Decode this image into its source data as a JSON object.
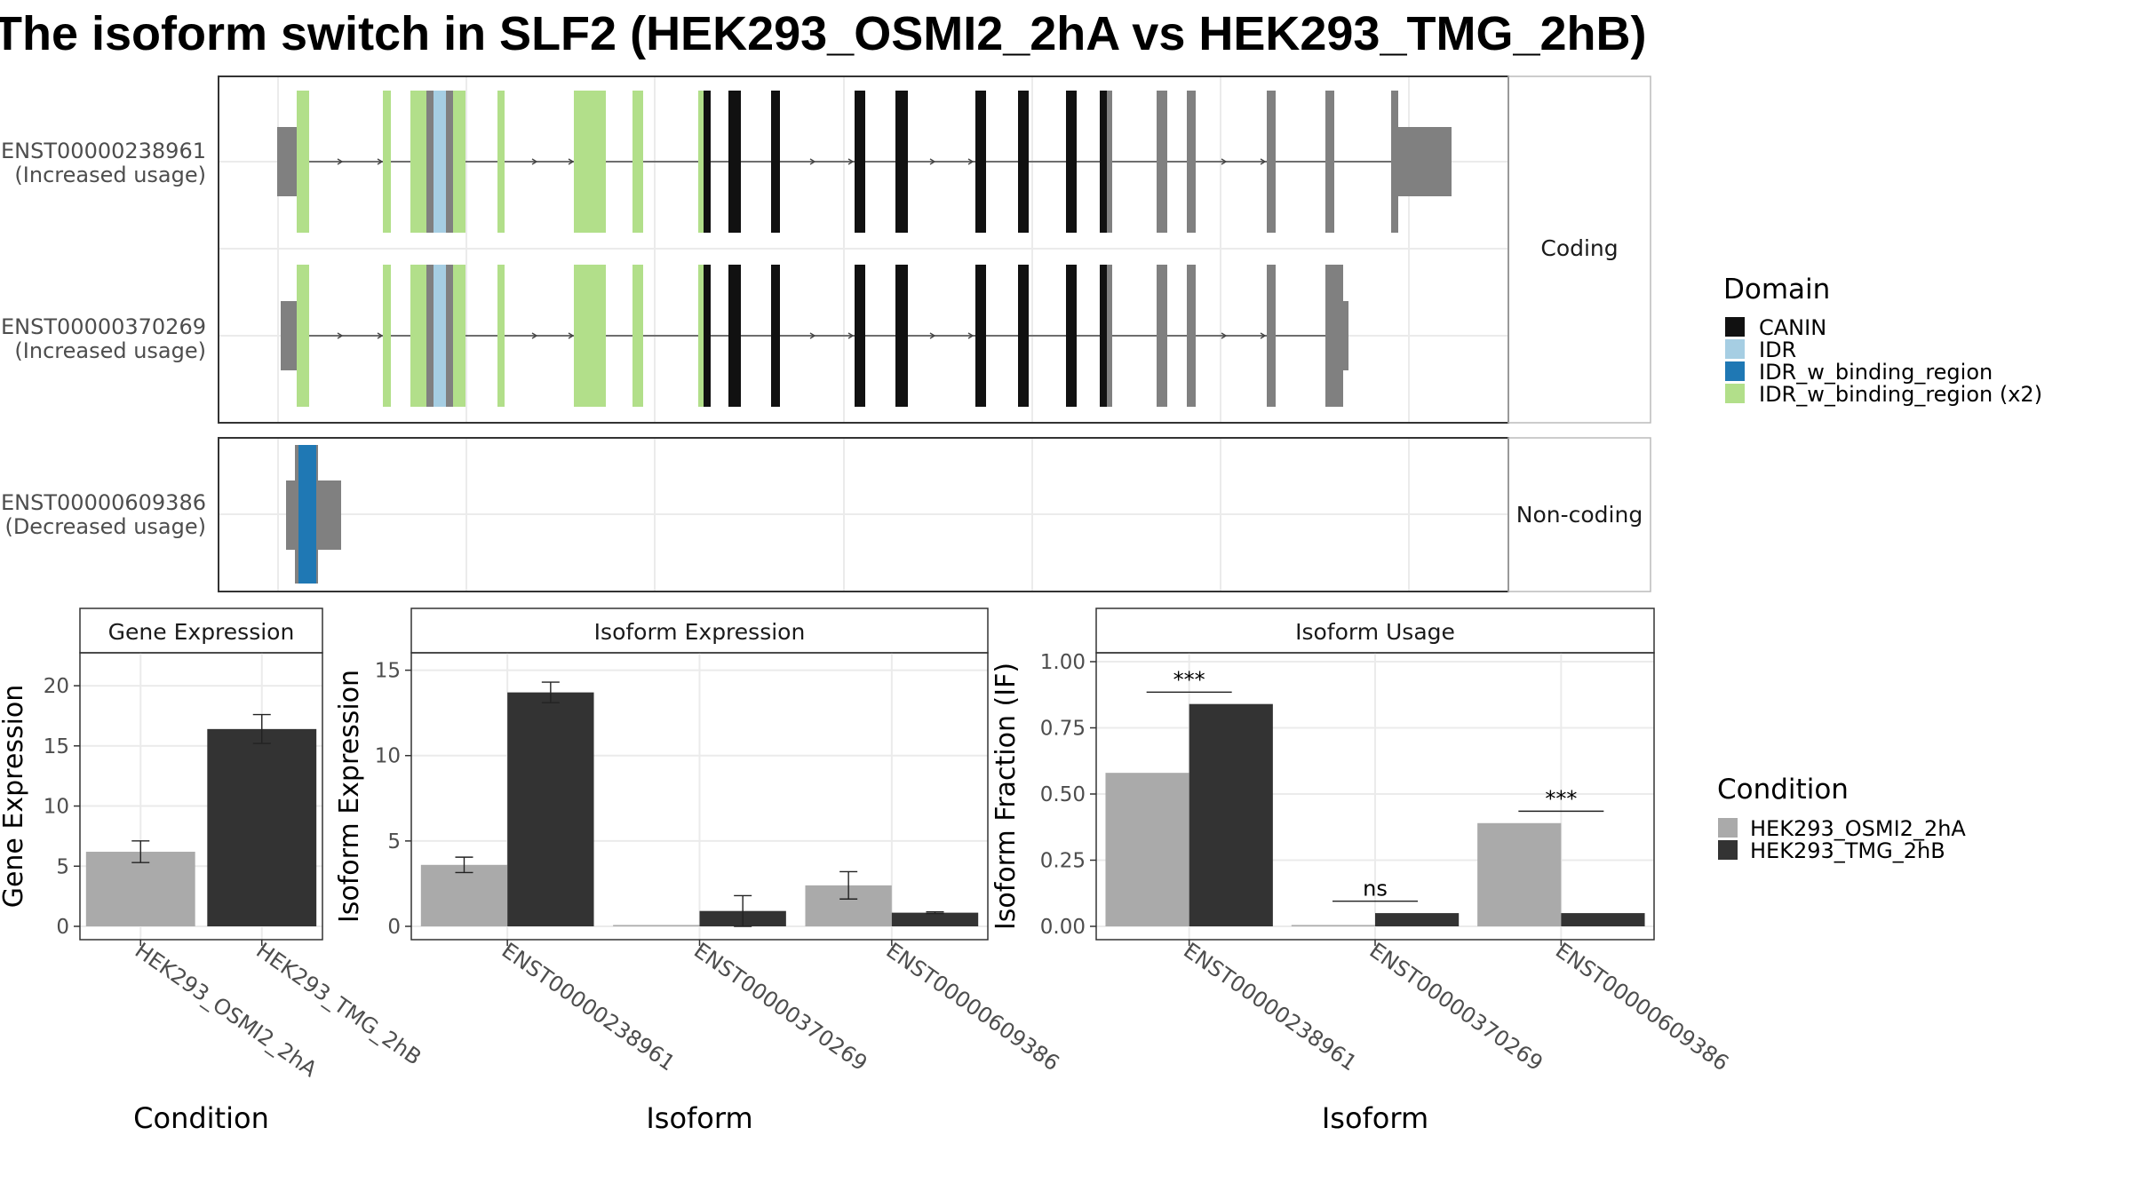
{
  "title": "The isoform switch in SLF2 (HEK293_OSMI2_2hA vs HEK293_TMG_2hB)",
  "colors": {
    "CANIN": "#111111",
    "IDR": "#a6cee3",
    "IDR_w_binding_region": "#1f78b4",
    "IDR_w_binding_region_x2": "#b2df8a",
    "uncoded": "#808080",
    "cond_a": "#aaaaaa",
    "cond_b": "#333333"
  },
  "structure": {
    "facets": [
      {
        "label": "Coding",
        "rows": [
          0,
          1
        ]
      },
      {
        "label": "Non-coding",
        "rows": [
          2
        ]
      }
    ],
    "transcripts": [
      {
        "id": "ENST00000238961",
        "usage": "(Increased usage)"
      },
      {
        "id": "ENST00000370269",
        "usage": "(Increased usage)"
      },
      {
        "id": "ENST00000609386",
        "usage": "(Decreased usage)"
      }
    ],
    "legend_title": "Domain",
    "legend": [
      "CANIN",
      "IDR",
      "IDR_w_binding_region",
      "IDR_w_binding_region (x2)"
    ]
  },
  "chart_data": [
    {
      "type": "bar",
      "title": "Gene Expression",
      "xlabel": "Condition",
      "ylabel": "Gene Expression",
      "ylim": [
        0,
        22
      ],
      "yticks": [
        0,
        5,
        10,
        15,
        20
      ],
      "categories": [
        "HEK293_OSMI2_2hA",
        "HEK293_TMG_2hB"
      ],
      "values": [
        6.2,
        16.4
      ],
      "errors": [
        0.9,
        1.2
      ]
    },
    {
      "type": "bar",
      "title": "Isoform Expression",
      "xlabel": "Isoform",
      "ylabel": "Isoform Expression",
      "ylim": [
        0,
        15.5
      ],
      "yticks": [
        0,
        5,
        10,
        15
      ],
      "categories": [
        "ENST00000238961",
        "ENST00000370269",
        "ENST00000609386"
      ],
      "series": [
        {
          "name": "HEK293_OSMI2_2hA",
          "values": [
            3.6,
            0.0,
            2.4
          ],
          "errors": [
            0.45,
            0.0,
            0.8
          ]
        },
        {
          "name": "HEK293_TMG_2hB",
          "values": [
            13.7,
            0.9,
            0.8
          ],
          "errors": [
            0.6,
            0.9,
            0.05
          ]
        }
      ]
    },
    {
      "type": "bar",
      "title": "Isoform Usage",
      "xlabel": "Isoform",
      "ylabel": "Isoform Fraction (IF)",
      "ylim": [
        0,
        1.0
      ],
      "yticks": [
        0,
        0.25,
        0.5,
        0.75,
        1.0
      ],
      "ytick_labels": [
        "0.00",
        "0.25",
        "0.50",
        "0.75",
        "1.00"
      ],
      "categories": [
        "ENST00000238961",
        "ENST00000370269",
        "ENST00000609386"
      ],
      "series": [
        {
          "name": "HEK293_OSMI2_2hA",
          "values": [
            0.58,
            0.0,
            0.39
          ]
        },
        {
          "name": "HEK293_TMG_2hB",
          "values": [
            0.84,
            0.05,
            0.05
          ]
        }
      ],
      "significance": [
        "***",
        "ns",
        "***"
      ],
      "sig_heights": [
        0.885,
        0.095,
        0.435
      ]
    }
  ],
  "condition_legend": {
    "title": "Condition",
    "items": [
      "HEK293_OSMI2_2hA",
      "HEK293_TMG_2hB"
    ]
  }
}
